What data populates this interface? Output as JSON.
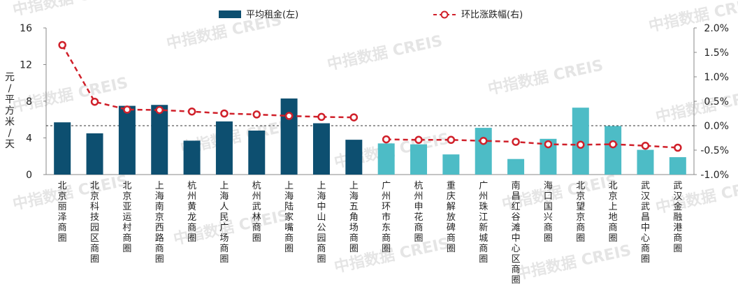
{
  "chart_data": {
    "type": "bar",
    "categories": [
      "北京丽泽商圈",
      "北京科技园区商圈",
      "北京亚运村商圈",
      "上海南京西路商圈",
      "杭州黄龙商圈",
      "上海人民广场商圈",
      "杭州武林商圈",
      "上海陆家嘴商圈",
      "上海中山公园商圈",
      "上海五角场商圈",
      "广州环市东商圈",
      "杭州申花商圈",
      "重庆解放碑商圈",
      "广州珠江新城商圈",
      "南昌红谷滩中心区商圈",
      "海口国兴商圈",
      "北京望京商圈",
      "北京上地商圈",
      "武汉武昌中心商圈",
      "武汉金融港商圈"
    ],
    "series": [
      {
        "name": "平均租金(左)",
        "type": "bar",
        "axis": "left",
        "values": [
          5.7,
          4.5,
          7.5,
          7.6,
          3.7,
          5.8,
          4.8,
          8.3,
          5.6,
          3.8,
          3.4,
          3.3,
          2.2,
          5.1,
          1.7,
          3.9,
          7.3,
          5.3,
          2.7,
          1.9
        ],
        "colors": [
          "#0d4f70",
          "#0d4f70",
          "#0d4f70",
          "#0d4f70",
          "#0d4f70",
          "#0d4f70",
          "#0d4f70",
          "#0d4f70",
          "#0d4f70",
          "#0d4f70",
          "#4dbcc6",
          "#4dbcc6",
          "#4dbcc6",
          "#4dbcc6",
          "#4dbcc6",
          "#4dbcc6",
          "#4dbcc6",
          "#4dbcc6",
          "#4dbcc6",
          "#4dbcc6"
        ]
      },
      {
        "name": "环比涨跌幅(右)",
        "type": "line",
        "axis": "right",
        "values": [
          1.65,
          0.49,
          0.33,
          0.32,
          0.29,
          0.25,
          0.23,
          0.2,
          0.18,
          0.17,
          -0.28,
          -0.29,
          -0.29,
          -0.31,
          -0.33,
          -0.38,
          -0.39,
          -0.38,
          -0.41,
          -0.45
        ],
        "color": "#d0202a"
      }
    ],
    "y_left": {
      "label": "元/平方米/天",
      "ylim": [
        0,
        16
      ],
      "ticks": [
        "0",
        "4",
        "8",
        "12",
        "16"
      ]
    },
    "y_right": {
      "ylim": [
        -1.0,
        2.0
      ],
      "ticks": [
        "-1.0%",
        "-0.5%",
        "0.0%",
        "0.5%",
        "1.0%",
        "1.5%",
        "2.0%"
      ]
    },
    "legend_position": "top",
    "zero_reference_line": "dashed",
    "grid": false
  },
  "watermark": {
    "text": "中指数据 CREIS"
  }
}
